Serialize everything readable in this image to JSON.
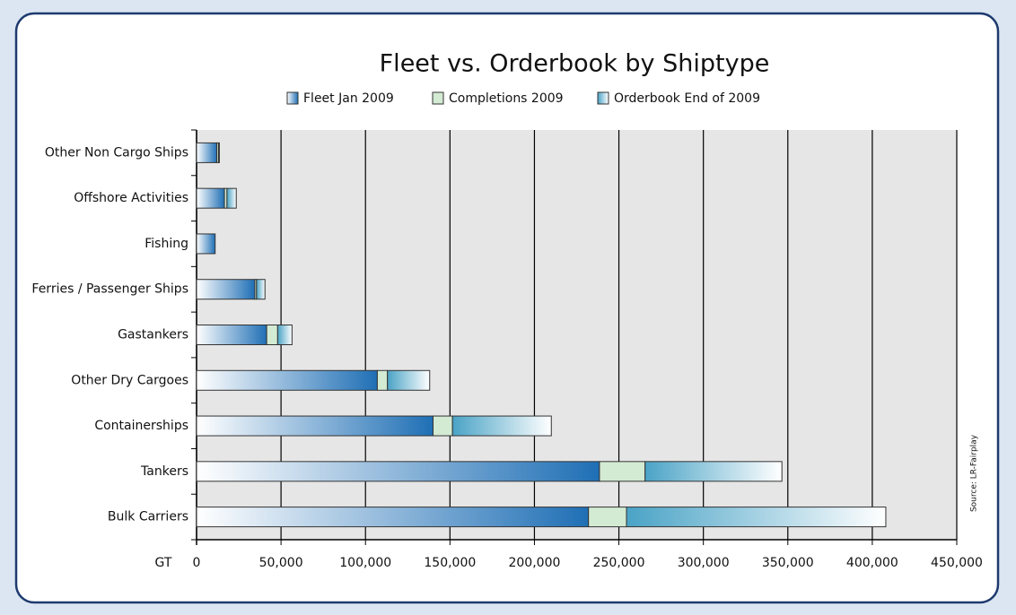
{
  "chart_data": {
    "type": "bar",
    "orientation": "horizontal",
    "stacked": true,
    "title": "Fleet vs. Orderbook by Shiptype",
    "xlabel": "GT",
    "source": "Source: LR-Fairplay",
    "categories": [
      "Other Non Cargo Ships",
      "Offshore Activities",
      "Fishing",
      "Ferries / Passenger Ships",
      "Gastankers",
      "Other Dry Cargoes",
      "Containerships",
      "Tankers",
      "Bulk Carriers"
    ],
    "series": [
      {
        "name": "Fleet Jan 2009",
        "color": "#1f6fb5",
        "values": [
          12000,
          16500,
          11000,
          34500,
          41500,
          107000,
          140000,
          238500,
          232000
        ]
      },
      {
        "name": "Completions 2009",
        "color": "#d3ead3",
        "values": [
          1000,
          1500,
          0,
          1000,
          6500,
          6000,
          11500,
          27000,
          22500
        ]
      },
      {
        "name": "Orderbook End of 2009",
        "color": "#4aa3c6",
        "values": [
          500,
          5500,
          0,
          5000,
          8500,
          25000,
          58500,
          81000,
          153500
        ]
      }
    ],
    "xlim": [
      0,
      450000
    ],
    "xticks": [
      0,
      {
        "value": 50000,
        "label": "50,000"
      },
      {
        "value": 100000,
        "label": "100,000"
      },
      {
        "value": 150000,
        "label": "150,000"
      },
      {
        "value": 200000,
        "label": "200,000"
      },
      {
        "value": 250000,
        "label": "250,000"
      },
      {
        "value": 300000,
        "label": "300,000"
      },
      {
        "value": 350000,
        "label": "350,000"
      },
      {
        "value": 400000,
        "label": "400,000"
      },
      {
        "value": 450000,
        "label": "450,000"
      }
    ],
    "grid": true
  }
}
